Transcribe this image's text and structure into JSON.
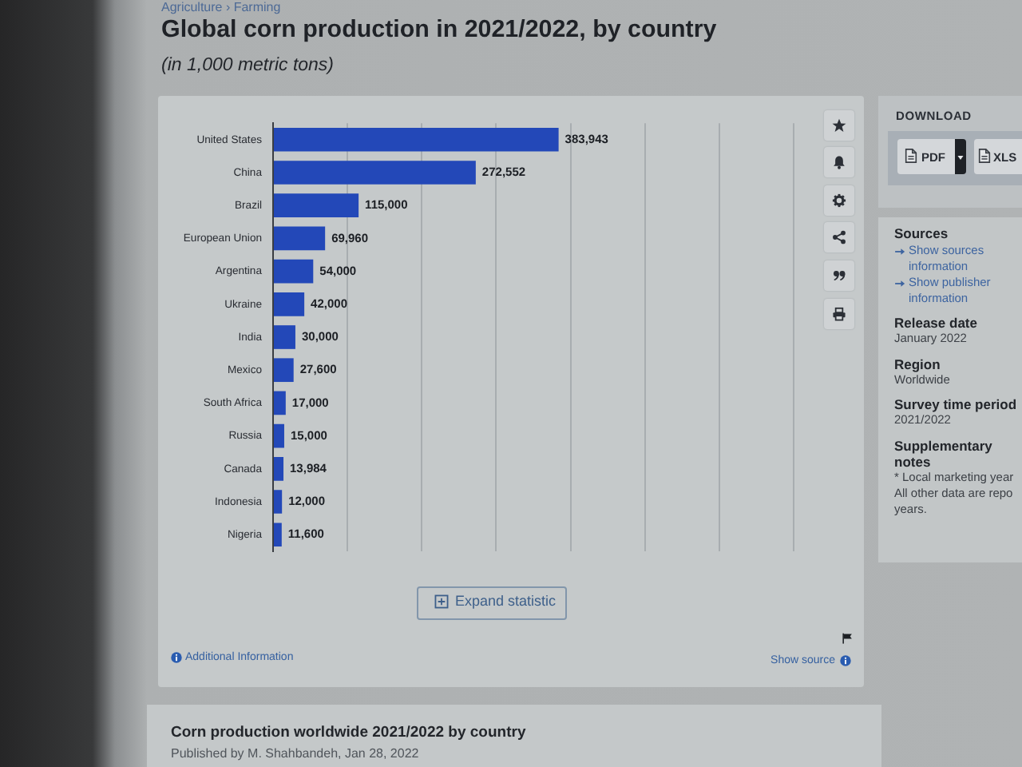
{
  "chart_data": {
    "type": "bar",
    "orientation": "horizontal",
    "title": "Global corn production in 2021/2022, by country",
    "subtitle": "(in 1,000 metric tons)",
    "categories": [
      "United States",
      "China",
      "Brazil",
      "European Union",
      "Argentina",
      "Ukraine",
      "India",
      "Mexico",
      "South Africa",
      "Russia",
      "Canada",
      "Indonesia",
      "Nigeria"
    ],
    "values": [
      383943,
      272552,
      115000,
      69960,
      54000,
      42000,
      30000,
      27600,
      17000,
      15000,
      13984,
      12000,
      11600
    ],
    "value_labels": [
      "383,943",
      "272,552",
      "115,000",
      "69,960",
      "54,000",
      "42,000",
      "30,000",
      "27,600",
      "17,000",
      "15,000",
      "13,984",
      "12,000",
      "11,600"
    ],
    "color": "#2348b8",
    "grid": "x",
    "tick_labels": "y",
    "annotations": [
      "Agriculture › Farming",
      "Expand statistic",
      "Additional Information",
      "Show source",
      "DOWNLOAD",
      "PDF",
      "XLS",
      "Sources",
      "Show sources information",
      "Show publisher information",
      "Release date",
      "January 2022",
      "Region",
      "Worldwide",
      "Survey time period",
      "2021/2022",
      "Supplementary notes",
      "* Local marketing year",
      "All other data are repo",
      "years.",
      "Corn production worldwide 2021/2022 by country",
      "Published by M. Shahbandeh, Jan 28, 2022"
    ]
  }
}
